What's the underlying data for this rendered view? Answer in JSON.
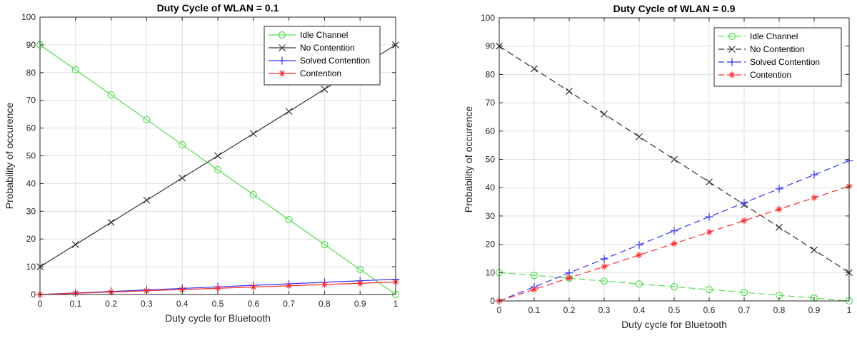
{
  "chart_data": [
    {
      "type": "line",
      "title": "Duty Cycle of WLAN = 0.1",
      "xlabel": "Duty cycle for Bluetooth",
      "ylabel": "Probability of occurence",
      "xlim": [
        0,
        1
      ],
      "ylim": [
        0,
        100
      ],
      "xticks": [
        0,
        0.1,
        0.2,
        0.3,
        0.4,
        0.5,
        0.6,
        0.7,
        0.8,
        0.9,
        1
      ],
      "yticks": [
        0,
        10,
        20,
        30,
        40,
        50,
        60,
        70,
        80,
        90,
        100
      ],
      "grid": true,
      "legend_position": "top-right",
      "x": [
        0,
        0.1,
        0.2,
        0.3,
        0.4,
        0.5,
        0.6,
        0.7,
        0.8,
        0.9,
        1
      ],
      "series": [
        {
          "name": "Idle Channel",
          "color": "#4de04d",
          "marker": "circle",
          "dash": "solid",
          "values": [
            90,
            81,
            72,
            63,
            54,
            45,
            36,
            27,
            18,
            9,
            0
          ]
        },
        {
          "name": "No Contention",
          "color": "#333333",
          "marker": "x",
          "dash": "solid",
          "values": [
            10,
            18,
            26,
            34,
            42,
            50,
            58,
            66,
            74,
            82,
            90
          ]
        },
        {
          "name": "Solved Contention",
          "color": "#3333ff",
          "marker": "plus",
          "dash": "solid",
          "values": [
            0,
            0.55,
            1.1,
            1.65,
            2.2,
            2.75,
            3.3,
            3.85,
            4.4,
            4.95,
            5.5
          ]
        },
        {
          "name": "Contention",
          "color": "#ff2a2a",
          "marker": "star",
          "dash": "solid",
          "values": [
            0,
            0.45,
            0.9,
            1.35,
            1.8,
            2.25,
            2.7,
            3.15,
            3.6,
            4.05,
            4.5
          ]
        }
      ]
    },
    {
      "type": "line",
      "title": "Duty Cycle of WLAN = 0.9",
      "xlabel": "Duty cycle for Bluetooth",
      "ylabel": "Probability of occurence",
      "xlim": [
        0,
        1
      ],
      "ylim": [
        0,
        100
      ],
      "xticks": [
        0,
        0.1,
        0.2,
        0.3,
        0.4,
        0.5,
        0.6,
        0.7,
        0.8,
        0.9,
        1
      ],
      "yticks": [
        0,
        10,
        20,
        30,
        40,
        50,
        60,
        70,
        80,
        90,
        100
      ],
      "grid": true,
      "legend_position": "top-right",
      "x": [
        0,
        0.1,
        0.2,
        0.3,
        0.4,
        0.5,
        0.6,
        0.7,
        0.8,
        0.9,
        1
      ],
      "series": [
        {
          "name": "Idle Channel",
          "color": "#4de04d",
          "marker": "circle",
          "dash": "dashed",
          "values": [
            10,
            9,
            8,
            7,
            6,
            5,
            4,
            3,
            2,
            1,
            0
          ]
        },
        {
          "name": "No Contention",
          "color": "#333333",
          "marker": "x",
          "dash": "dashed",
          "values": [
            90,
            82,
            74,
            66,
            58,
            50,
            42,
            34,
            26,
            18,
            10
          ]
        },
        {
          "name": "Solved Contention",
          "color": "#3333ff",
          "marker": "plus",
          "dash": "dashed",
          "values": [
            0,
            4.95,
            9.9,
            14.85,
            19.8,
            24.75,
            29.7,
            34.65,
            39.6,
            44.55,
            49.5
          ]
        },
        {
          "name": "Contention",
          "color": "#ff2a2a",
          "marker": "star",
          "dash": "dashed",
          "values": [
            0,
            4.05,
            8.1,
            12.15,
            16.2,
            20.25,
            24.3,
            28.35,
            32.4,
            36.45,
            40.5
          ]
        }
      ]
    }
  ]
}
